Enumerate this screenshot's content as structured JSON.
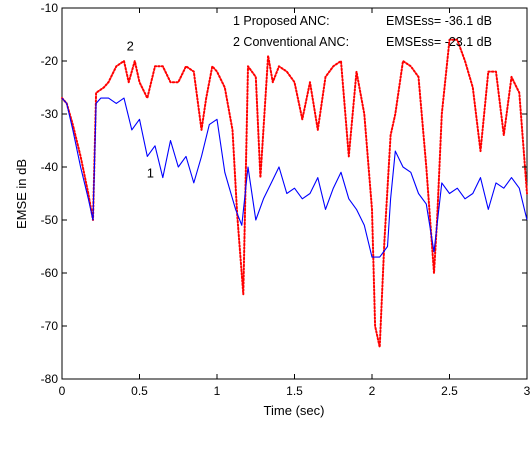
{
  "chart_data": {
    "type": "line",
    "xlabel": "Time (sec)",
    "ylabel": "EMSE in dB",
    "xlim": [
      0,
      3
    ],
    "ylim": [
      -80,
      -10
    ],
    "xticks": [
      "0",
      "0.5",
      "1",
      "1.5",
      "2",
      "2.5",
      "3"
    ],
    "yticks": [
      "-10",
      "-20",
      "-30",
      "-40",
      "-50",
      "-60",
      "-70",
      "-80"
    ],
    "grid": false,
    "legend_placement": "top-right",
    "legend": [
      {
        "label": "1 Proposed ANC:",
        "value": "EMSEss= -36.1 dB"
      },
      {
        "label": "2 Conventional ANC:",
        "value": "EMSEss= -23.1 dB"
      }
    ],
    "annotations": [
      {
        "text": "1",
        "x": 0.57,
        "y": -42
      },
      {
        "text": "2",
        "x": 0.44,
        "y": -18
      }
    ],
    "series": [
      {
        "color": "#0000ff",
        "style": "solid",
        "x": [
          0,
          0.03,
          0.07,
          0.12,
          0.17,
          0.2,
          0.22,
          0.25,
          0.3,
          0.35,
          0.4,
          0.45,
          0.5,
          0.55,
          0.6,
          0.65,
          0.7,
          0.75,
          0.8,
          0.85,
          0.9,
          0.95,
          1.0,
          1.05,
          1.08,
          1.12,
          1.16,
          1.2,
          1.25,
          1.3,
          1.35,
          1.4,
          1.45,
          1.5,
          1.55,
          1.6,
          1.65,
          1.7,
          1.75,
          1.8,
          1.85,
          1.9,
          1.95,
          2.0,
          2.05,
          2.1,
          2.12,
          2.15,
          2.2,
          2.25,
          2.3,
          2.35,
          2.4,
          2.45,
          2.5,
          2.55,
          2.6,
          2.65,
          2.7,
          2.75,
          2.8,
          2.85,
          2.9,
          2.95,
          3.0
        ],
        "y": [
          -27,
          -28,
          -33,
          -40,
          -46,
          -50,
          -28,
          -27,
          -27,
          -28,
          -27,
          -33,
          -31,
          -38,
          -36,
          -42,
          -35,
          -40,
          -38,
          -43,
          -38,
          -32,
          -31,
          -41,
          -44,
          -48,
          -51,
          -40,
          -50,
          -46,
          -43,
          -40,
          -45,
          -44,
          -46,
          -45,
          -42,
          -48,
          -44,
          -41,
          -46,
          -48,
          -51,
          -57,
          -57,
          -55,
          -46,
          -37,
          -40,
          -41,
          -45,
          -47,
          -56,
          -43,
          -45,
          -44,
          -46,
          -45,
          -42,
          -48,
          -43,
          -44,
          -42,
          -44,
          -50
        ]
      },
      {
        "color": "#ff0000",
        "style": "dotted",
        "x": [
          0,
          0.03,
          0.07,
          0.12,
          0.17,
          0.2,
          0.22,
          0.27,
          0.3,
          0.35,
          0.4,
          0.43,
          0.47,
          0.5,
          0.55,
          0.6,
          0.65,
          0.7,
          0.75,
          0.8,
          0.85,
          0.9,
          0.93,
          0.97,
          1.0,
          1.05,
          1.1,
          1.13,
          1.17,
          1.2,
          1.25,
          1.28,
          1.33,
          1.36,
          1.4,
          1.45,
          1.5,
          1.55,
          1.6,
          1.65,
          1.7,
          1.75,
          1.8,
          1.85,
          1.9,
          1.95,
          2.0,
          2.02,
          2.05,
          2.08,
          2.12,
          2.15,
          2.2,
          2.25,
          2.3,
          2.35,
          2.4,
          2.42,
          2.45,
          2.5,
          2.55,
          2.6,
          2.65,
          2.7,
          2.75,
          2.8,
          2.85,
          2.9,
          2.95,
          3.0
        ],
        "y": [
          -27,
          -28,
          -32,
          -38,
          -45,
          -50,
          -26,
          -25,
          -24,
          -21,
          -20,
          -24,
          -20,
          -24,
          -27,
          -21,
          -21,
          -24,
          -24,
          -21,
          -22,
          -33,
          -27,
          -21,
          -22,
          -25,
          -33,
          -49,
          -64,
          -21,
          -23,
          -42,
          -19,
          -24,
          -21,
          -22,
          -24,
          -31,
          -24,
          -33,
          -23,
          -21,
          -20,
          -38,
          -22,
          -30,
          -48,
          -70,
          -74,
          -54,
          -34,
          -30,
          -20,
          -21,
          -23,
          -40,
          -60,
          -50,
          -30,
          -16,
          -16,
          -20,
          -25,
          -37,
          -22,
          -22,
          -34,
          -23,
          -26,
          -45
        ]
      }
    ]
  }
}
